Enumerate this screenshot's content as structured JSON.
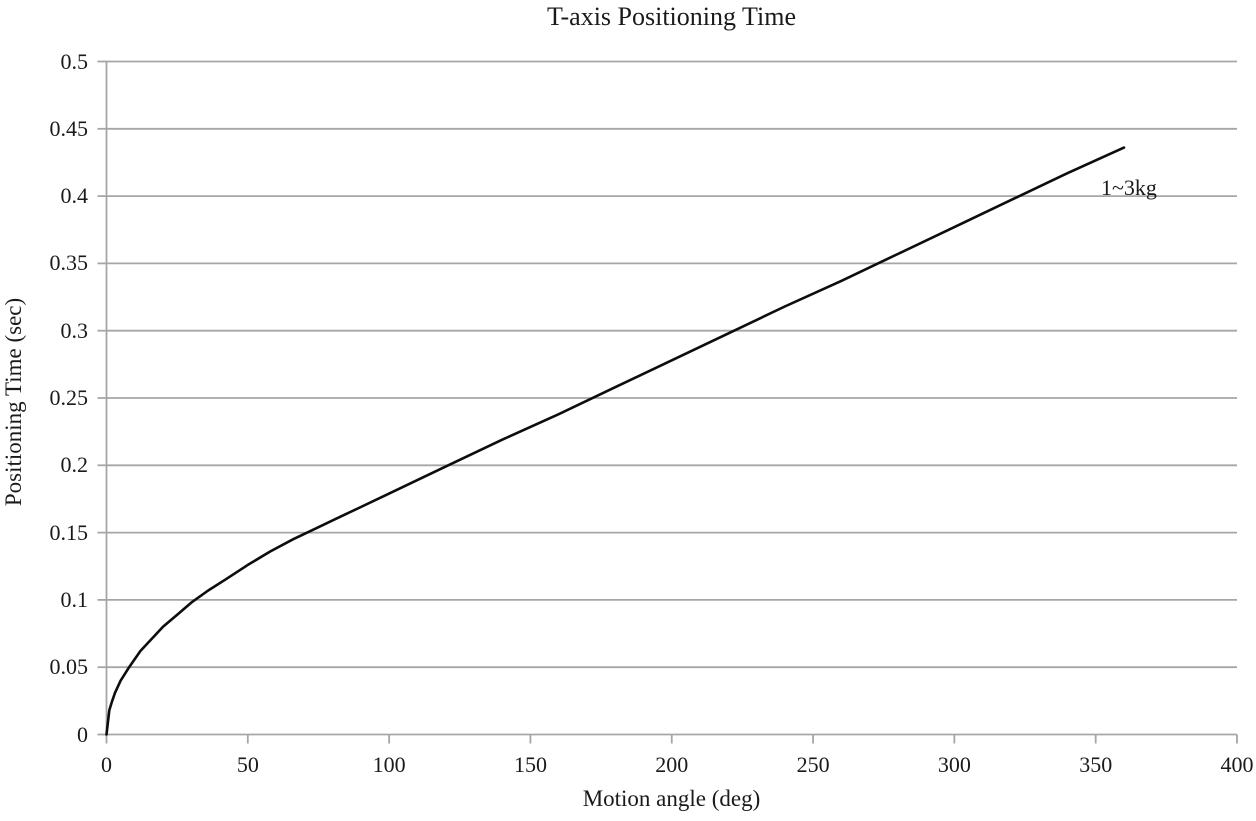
{
  "chart_data": {
    "type": "line",
    "title": "T-axis Positioning Time",
    "xlabel": "Motion angle (deg)",
    "ylabel": "Positioning Time (sec)",
    "xlim": [
      0,
      400
    ],
    "ylim": [
      0,
      0.5
    ],
    "x_ticks": [
      0,
      50,
      100,
      150,
      200,
      250,
      300,
      350,
      400
    ],
    "x_tick_labels": [
      "0",
      "50",
      "100",
      "150",
      "200",
      "250",
      "300",
      "350",
      "400"
    ],
    "y_ticks": [
      0,
      0.05,
      0.1,
      0.15,
      0.2,
      0.25,
      0.3,
      0.35,
      0.4,
      0.45,
      0.5
    ],
    "y_tick_labels": [
      "0",
      "0.05",
      "0.1",
      "0.15",
      "0.2",
      "0.25",
      "0.3",
      "0.35",
      "0.4",
      "0.45",
      "0.5"
    ],
    "grid": "horizontal-only",
    "legend_position": "inline-end-of-line",
    "colors": {
      "line": "#0d0d0d",
      "grid": "#a6a6a6",
      "text": "#1a1a1a",
      "background": "#ffffff"
    },
    "series": [
      {
        "name": "1~3kg",
        "label_position": {
          "x": 352,
          "y": 0.406
        },
        "x": [
          0,
          1,
          2,
          3,
          5,
          8,
          12,
          16,
          20,
          25,
          30,
          36,
          42,
          50,
          58,
          66,
          74,
          81,
          90,
          100,
          120,
          140,
          160,
          180,
          200,
          220,
          240,
          260,
          280,
          300,
          320,
          340,
          360
        ],
        "y": [
          0,
          0.018,
          0.025,
          0.031,
          0.04,
          0.05,
          0.062,
          0.071,
          0.08,
          0.089,
          0.098,
          0.107,
          0.115,
          0.126,
          0.136,
          0.145,
          0.153,
          0.16,
          0.169,
          0.179,
          0.199,
          0.219,
          0.238,
          0.258,
          0.278,
          0.298,
          0.318,
          0.337,
          0.357,
          0.377,
          0.397,
          0.417,
          0.436
        ]
      }
    ]
  }
}
